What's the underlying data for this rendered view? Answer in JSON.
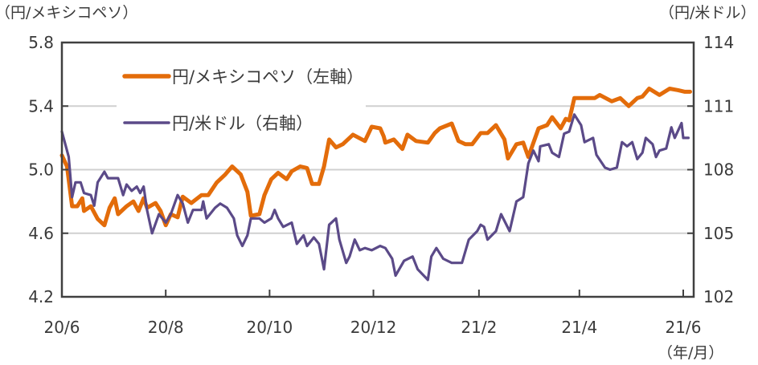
{
  "chart_data": {
    "type": "line",
    "left_axis_title": "（円/メキシコペソ）",
    "right_axis_title": "（円/米ドル）",
    "x_unit_label": "（年/月）",
    "x_tick_labels": [
      "20/6",
      "20/8",
      "20/10",
      "20/12",
      "21/2",
      "21/4",
      "21/6"
    ],
    "x_tick_days": [
      0,
      61,
      122,
      183,
      245,
      304,
      365
    ],
    "x_range_days": [
      0,
      370
    ],
    "x_note": "x values are days since 2020/6/1",
    "left_ylim": [
      4.2,
      5.8
    ],
    "left_ticks": [
      "4.2",
      "4.6",
      "5.0",
      "5.4",
      "5.8"
    ],
    "right_ylim": [
      102,
      114
    ],
    "right_ticks": [
      "102",
      "105",
      "108",
      "111",
      "114"
    ],
    "grid": true,
    "legend_placement": "top-left",
    "series": [
      {
        "name": "円/メキシコペソ（左軸）",
        "axis": "left",
        "color": "#E36C0A",
        "x": [
          0,
          3,
          6,
          9,
          12,
          13,
          17,
          21,
          25,
          28,
          31,
          33,
          38,
          42,
          45,
          48,
          50,
          55,
          58,
          61,
          64,
          68,
          71,
          76,
          82,
          86,
          91,
          96,
          100,
          105,
          109,
          111,
          116,
          119,
          123,
          127,
          132,
          135,
          140,
          144,
          147,
          151,
          154,
          157,
          161,
          165,
          171,
          178,
          182,
          187,
          189,
          190,
          195,
          200,
          203,
          208,
          215,
          219,
          222,
          229,
          233,
          237,
          241,
          246,
          250,
          255,
          260,
          262,
          267,
          271,
          274,
          280,
          285,
          288,
          293,
          296,
          298,
          301,
          307,
          313,
          316,
          323,
          328,
          333,
          338,
          341,
          345,
          351,
          357,
          362,
          366,
          369
        ],
        "values": [
          5.09,
          5.02,
          4.77,
          4.77,
          4.82,
          4.74,
          4.77,
          4.69,
          4.65,
          4.76,
          4.82,
          4.72,
          4.77,
          4.8,
          4.74,
          4.82,
          4.76,
          4.79,
          4.74,
          4.65,
          4.72,
          4.7,
          4.83,
          4.79,
          4.84,
          4.84,
          4.92,
          4.97,
          5.02,
          4.97,
          4.86,
          4.71,
          4.72,
          4.84,
          4.94,
          4.98,
          4.94,
          4.99,
          5.02,
          5.01,
          4.91,
          4.91,
          5.02,
          5.19,
          5.14,
          5.16,
          5.22,
          5.18,
          5.27,
          5.26,
          5.21,
          5.17,
          5.19,
          5.13,
          5.22,
          5.18,
          5.17,
          5.23,
          5.26,
          5.29,
          5.18,
          5.16,
          5.16,
          5.23,
          5.23,
          5.28,
          5.19,
          5.07,
          5.16,
          5.17,
          5.08,
          5.26,
          5.28,
          5.33,
          5.26,
          5.32,
          5.31,
          5.45,
          5.45,
          5.45,
          5.47,
          5.43,
          5.45,
          5.4,
          5.45,
          5.46,
          5.51,
          5.47,
          5.51,
          5.5,
          5.49,
          5.49
        ]
      },
      {
        "name": "円/米ドル（右軸）",
        "axis": "right",
        "color": "#5B4A88",
        "x": [
          0,
          4,
          6,
          8,
          11,
          13,
          17,
          19,
          21,
          25,
          27,
          33,
          36,
          38,
          41,
          44,
          46,
          48,
          50,
          53,
          57,
          59,
          61,
          64,
          68,
          71,
          74,
          77,
          82,
          83,
          85,
          90,
          93,
          97,
          101,
          103,
          106,
          109,
          111,
          116,
          119,
          123,
          125,
          127,
          130,
          135,
          138,
          142,
          144,
          148,
          151,
          154,
          157,
          161,
          163,
          167,
          169,
          172,
          175,
          178,
          182,
          187,
          190,
          194,
          196,
          201,
          206,
          209,
          215,
          217,
          220,
          224,
          229,
          235,
          239,
          244,
          246,
          248,
          250,
          255,
          258,
          263,
          267,
          271,
          274,
          277,
          280,
          281,
          286,
          288,
          292,
          295,
          298,
          301,
          305,
          307,
          312,
          314,
          319,
          322,
          326,
          329,
          332,
          335,
          338,
          341,
          343,
          347,
          349,
          351,
          355,
          358,
          360,
          364,
          365,
          368
        ],
        "values": [
          109.8,
          108.6,
          106.7,
          107.4,
          107.4,
          106.9,
          106.8,
          106.3,
          107.4,
          107.9,
          107.6,
          107.6,
          106.8,
          107.3,
          107.0,
          107.2,
          106.9,
          107.2,
          106.1,
          105.0,
          105.9,
          105.7,
          105.5,
          105.9,
          106.8,
          106.4,
          105.5,
          106.1,
          106.1,
          106.5,
          105.7,
          106.2,
          106.4,
          106.2,
          105.7,
          104.9,
          104.4,
          104.9,
          105.7,
          105.7,
          105.5,
          105.7,
          106.1,
          105.7,
          105.3,
          105.5,
          104.5,
          104.9,
          104.4,
          104.8,
          104.5,
          103.3,
          105.4,
          105.7,
          104.7,
          103.6,
          103.9,
          104.7,
          104.2,
          104.3,
          104.2,
          104.4,
          104.3,
          103.8,
          103.0,
          103.7,
          103.9,
          103.3,
          102.8,
          103.9,
          104.3,
          103.8,
          103.6,
          103.6,
          104.7,
          105.1,
          105.4,
          105.3,
          104.7,
          105.1,
          105.9,
          105.1,
          106.5,
          106.7,
          108.3,
          108.9,
          108.4,
          109.1,
          109.2,
          108.8,
          108.6,
          109.7,
          109.8,
          110.6,
          110.1,
          109.3,
          109.5,
          108.7,
          108.1,
          108.0,
          108.1,
          109.3,
          109.1,
          109.3,
          108.5,
          108.8,
          109.5,
          109.2,
          108.6,
          108.9,
          109.0,
          110.0,
          109.5,
          110.2,
          109.5,
          109.5
        ]
      }
    ]
  }
}
